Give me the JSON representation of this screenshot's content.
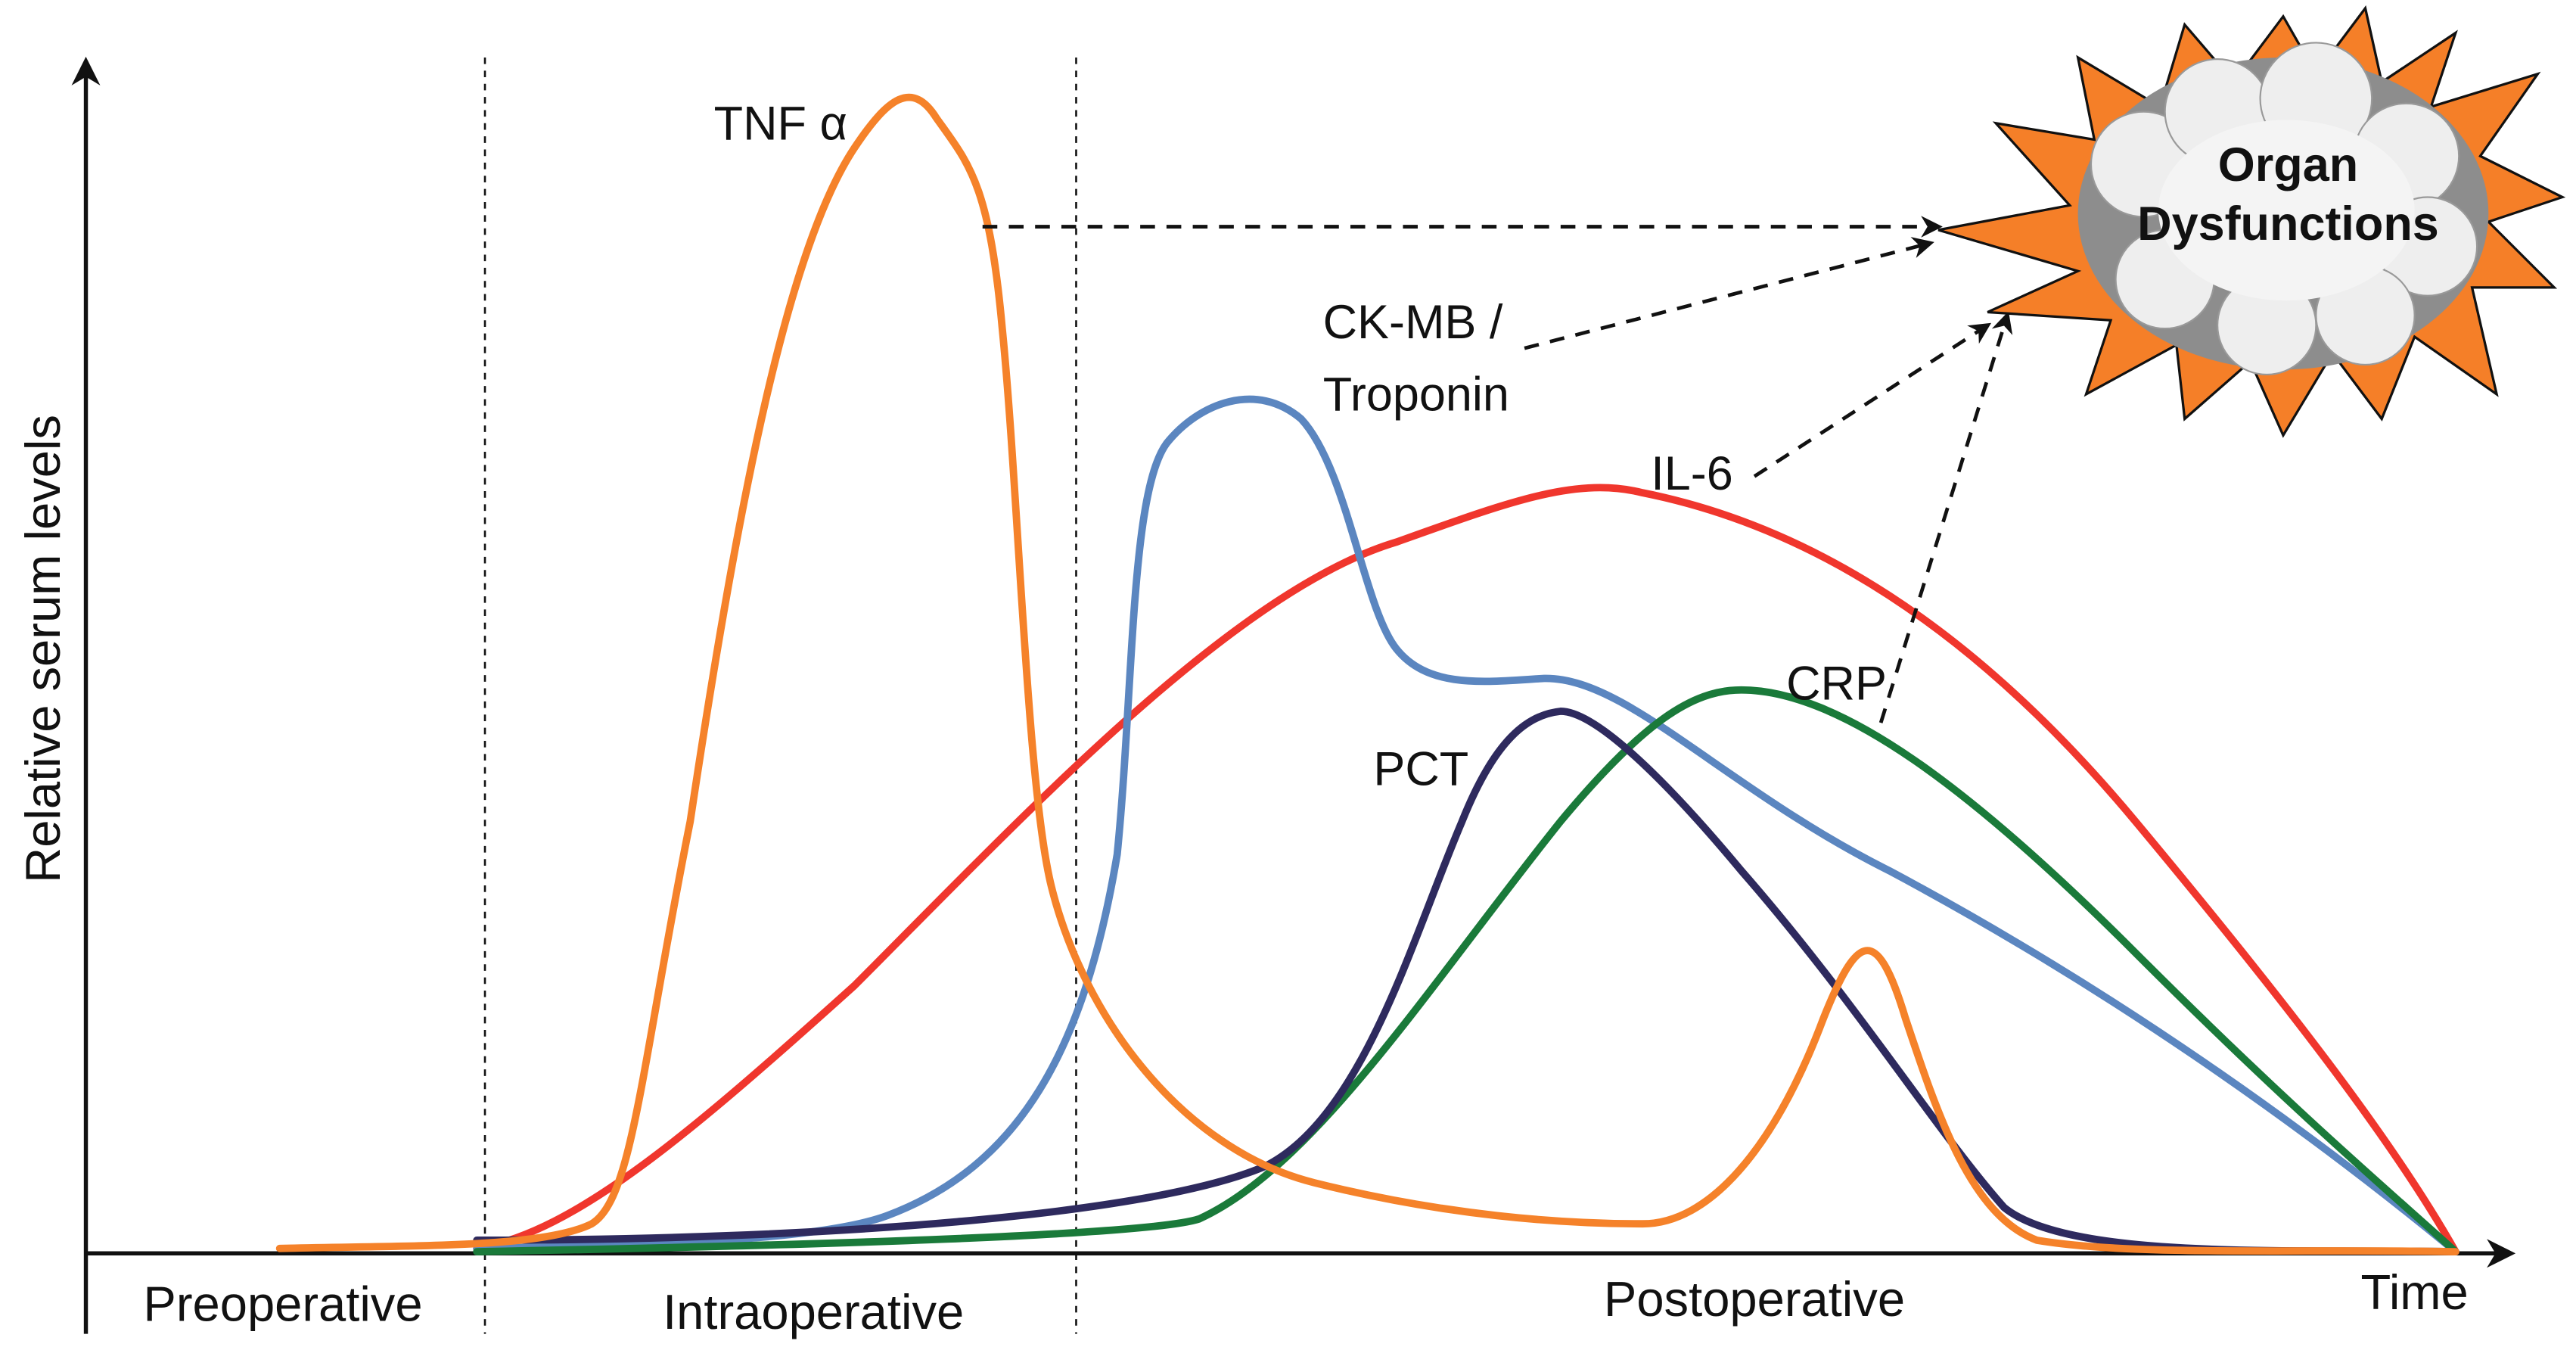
{
  "y_axis_label": "Relative serum levels",
  "x_axis_label": "Time",
  "phases": [
    "Preoperative",
    "Intraoperative",
    "Postoperative"
  ],
  "markers": {
    "tnf": "TNF α",
    "ckmb": [
      "CK-MB /",
      "Troponin"
    ],
    "il6": "IL-6",
    "pct": "PCT",
    "crp": "CRP"
  },
  "outcome": [
    "Organ",
    "Dysfunctions"
  ]
}
